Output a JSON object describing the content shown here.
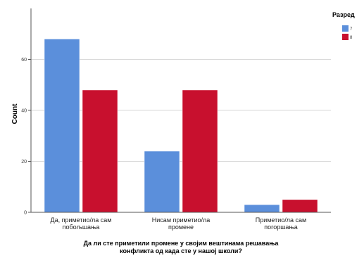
{
  "chart_data": {
    "type": "bar",
    "categories": [
      [
        "Да, приметио/ла сам",
        "побољшања"
      ],
      [
        "Нисам приметио/ла",
        "промене"
      ],
      [
        "Приметио/ла сам",
        "погоршања"
      ]
    ],
    "series": [
      {
        "name": "7",
        "color": "#5b8fdb",
        "values": [
          68,
          24,
          3
        ]
      },
      {
        "name": "8",
        "color": "#c8102e",
        "values": [
          48,
          48,
          5
        ]
      }
    ],
    "xlabel": [
      "Да ли сте приметили промене у својим вештинама решавања",
      "конфликта од када сте у нашој школи?"
    ],
    "ylabel": "Count",
    "ylim": [
      0,
      80
    ],
    "yticks": [
      0,
      20,
      40,
      60
    ],
    "grid": "horizontal",
    "legend": {
      "title": "Разред",
      "placement": "right"
    }
  }
}
